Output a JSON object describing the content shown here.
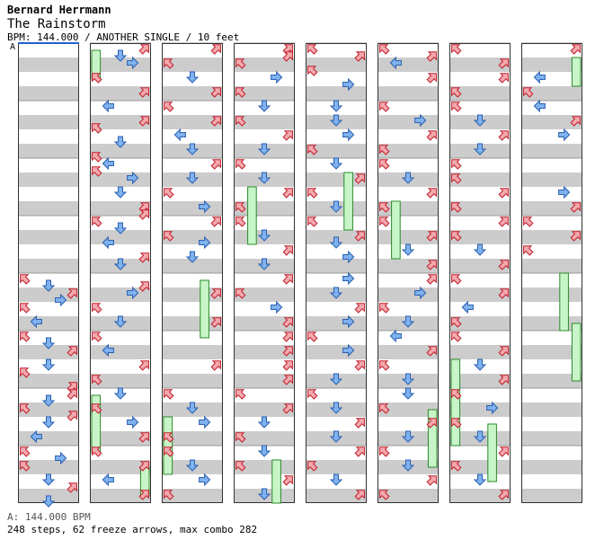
{
  "header": {
    "artist": "Bernard Herrmann",
    "title": "The Rainstorm",
    "info": "BPM: 144.000 / ANOTHER SINGLE / 10 feet"
  },
  "section_marker": "A",
  "footer": {
    "bpm_legend": "A: 144.000 BPM",
    "stats": "248 steps, 62 freeze arrows, max combo 282"
  },
  "colors": {
    "stripe": "#cccccc",
    "border": "#333333",
    "diagonal_arrow": "#f4a8ae",
    "diagonal_outline": "#c0202c",
    "cardinal_arrow": "#7fb2ef",
    "cardinal_outline": "#2a5fb0",
    "freeze_fill": "#c8f5c8",
    "freeze_outline": "#2a8a2a",
    "section_line": "#2060d0"
  },
  "chart_data": {
    "type": "step-chart",
    "columns": 8,
    "measures_per_column": 8,
    "lanes": [
      "up-left",
      "left",
      "center-down",
      "right",
      "up-right"
    ],
    "measures": [
      [],
      [],
      [],
      [],
      [
        [
          0,
          "up-left"
        ],
        [
          1,
          "center-down"
        ],
        [
          2,
          "up-right"
        ],
        [
          3,
          "right"
        ],
        [
          4,
          "up-left"
        ],
        [
          6,
          "left"
        ]
      ],
      [
        [
          0,
          "up-left"
        ],
        [
          1,
          "center-down"
        ],
        [
          2,
          "up-right"
        ],
        [
          4,
          "center-down"
        ],
        [
          5,
          "up-left"
        ],
        [
          7,
          "up-right"
        ]
      ],
      [
        [
          0,
          "up-right"
        ],
        [
          1,
          "center-down"
        ],
        [
          2,
          "up-left"
        ],
        [
          3,
          "up-right"
        ],
        [
          4,
          "center-down"
        ],
        [
          6,
          "left"
        ]
      ],
      [
        [
          0,
          "up-left"
        ],
        [
          1,
          "right"
        ],
        [
          2,
          "up-left"
        ],
        [
          4,
          "center-down"
        ],
        [
          5,
          "up-right"
        ],
        [
          7,
          "center-down"
        ]
      ],
      [
        [
          0,
          "up-right"
        ],
        [
          1,
          "center-down"
        ],
        [
          2,
          "right"
        ],
        [
          4,
          "up-left"
        ],
        [
          6,
          "up-right"
        ]
      ],
      [
        [
          0,
          "left"
        ],
        [
          2,
          "up-right"
        ],
        [
          3,
          "up-left"
        ],
        [
          5,
          "center-down"
        ],
        [
          7,
          "up-left"
        ]
      ],
      [
        [
          0,
          "left"
        ],
        [
          1,
          "up-left"
        ],
        [
          2,
          "right"
        ],
        [
          4,
          "center-down"
        ],
        [
          6,
          "up-right"
        ],
        [
          7,
          "up-right"
        ]
      ],
      [
        [
          0,
          "up-left"
        ],
        [
          1,
          "center-down"
        ],
        [
          3,
          "left"
        ],
        [
          5,
          "up-right"
        ],
        [
          6,
          "center-down"
        ]
      ],
      [
        [
          1,
          "up-right"
        ],
        [
          2,
          "right"
        ],
        [
          4,
          "up-left"
        ],
        [
          6,
          "center-down"
        ]
      ],
      [
        [
          0,
          "up-left"
        ],
        [
          2,
          "left"
        ],
        [
          4,
          "up-right"
        ],
        [
          6,
          "up-left"
        ]
      ],
      [
        [
          0,
          "center-down"
        ],
        [
          2,
          "up-left"
        ],
        [
          4,
          "right"
        ],
        [
          6,
          "up-right"
        ]
      ],
      [
        [
          0,
          "up-left"
        ],
        [
          2,
          "up-right"
        ],
        [
          4,
          "left"
        ],
        [
          6,
          "up-right"
        ]
      ],
      [
        [
          0,
          "up-right"
        ],
        [
          2,
          "up-left"
        ],
        [
          4,
          "center-down"
        ],
        [
          6,
          "up-right"
        ]
      ],
      [
        [
          0,
          "up-left"
        ],
        [
          2,
          "up-right"
        ],
        [
          4,
          "left"
        ],
        [
          6,
          "center-down"
        ]
      ],
      [
        [
          0,
          "up-right"
        ],
        [
          2,
          "center-down"
        ],
        [
          4,
          "up-left"
        ],
        [
          6,
          "right"
        ]
      ],
      [
        [
          0,
          "up-right"
        ],
        [
          2,
          "up-left"
        ],
        [
          3,
          "right"
        ],
        [
          5,
          "center-down"
        ]
      ],
      [
        [
          2,
          "up-right"
        ],
        [
          6,
          "up-right"
        ]
      ],
      [
        [
          4,
          "up-right"
        ]
      ],
      [
        [
          0,
          "up-left"
        ],
        [
          2,
          "center-down"
        ],
        [
          4,
          "right"
        ],
        [
          6,
          "up-left"
        ]
      ],
      [
        [
          0,
          "up-left"
        ],
        [
          2,
          "center-down"
        ],
        [
          4,
          "right"
        ],
        [
          6,
          "up-left"
        ]
      ],
      [
        [
          0,
          "up-right"
        ],
        [
          1,
          "up-right"
        ],
        [
          2,
          "up-left"
        ],
        [
          4,
          "right"
        ],
        [
          6,
          "up-left"
        ]
      ],
      [
        [
          0,
          "center-down"
        ],
        [
          2,
          "up-left"
        ],
        [
          4,
          "up-right"
        ],
        [
          6,
          "center-down"
        ]
      ],
      [
        [
          0,
          "up-left"
        ],
        [
          2,
          "center-down"
        ],
        [
          4,
          "up-right"
        ],
        [
          6,
          "up-left"
        ]
      ],
      [
        [
          0,
          "up-left"
        ],
        [
          2,
          "center-down"
        ],
        [
          4,
          "up-right"
        ],
        [
          6,
          "center-down"
        ]
      ],
      [
        [
          0,
          "up-right"
        ],
        [
          2,
          "up-left"
        ],
        [
          4,
          "right"
        ],
        [
          6,
          "up-right"
        ]
      ],
      [
        [
          0,
          "up-right"
        ],
        [
          2,
          "up-right"
        ],
        [
          4,
          "up-right"
        ],
        [
          6,
          "up-right"
        ]
      ],
      [
        [
          0,
          "up-left"
        ],
        [
          2,
          "up-right"
        ],
        [
          4,
          "center-down"
        ],
        [
          6,
          "up-left"
        ]
      ],
      [
        [
          0,
          "center-down"
        ],
        [
          2,
          "up-left"
        ],
        [
          4,
          "up-right"
        ],
        [
          6,
          "center-down"
        ]
      ],
      [
        [
          0,
          "up-left"
        ],
        [
          1,
          "up-right"
        ],
        [
          3,
          "up-left"
        ],
        [
          5,
          "right"
        ]
      ],
      [
        [
          0,
          "center-down"
        ],
        [
          2,
          "center-down"
        ],
        [
          4,
          "right"
        ],
        [
          6,
          "up-left"
        ]
      ],
      [
        [
          0,
          "center-down"
        ],
        [
          2,
          "up-right"
        ],
        [
          4,
          "up-left"
        ],
        [
          6,
          "center-down"
        ]
      ],
      [
        [
          0,
          "up-left"
        ],
        [
          2,
          "up-right"
        ],
        [
          3,
          "center-down"
        ],
        [
          5,
          "right"
        ]
      ],
      [
        [
          0,
          "right"
        ],
        [
          2,
          "center-down"
        ],
        [
          4,
          "up-right"
        ],
        [
          6,
          "right"
        ]
      ],
      [
        [
          0,
          "up-left"
        ],
        [
          2,
          "right"
        ],
        [
          4,
          "up-right"
        ],
        [
          6,
          "center-down"
        ]
      ],
      [
        [
          0,
          "up-left"
        ],
        [
          2,
          "center-down"
        ],
        [
          4,
          "up-right"
        ],
        [
          6,
          "center-down"
        ]
      ],
      [
        [
          0,
          "up-right"
        ],
        [
          2,
          "up-left"
        ],
        [
          4,
          "center-down"
        ],
        [
          6,
          "up-right"
        ]
      ],
      [
        [
          0,
          "up-left"
        ],
        [
          1,
          "up-right"
        ],
        [
          2,
          "left"
        ],
        [
          4,
          "up-right"
        ]
      ],
      [
        [
          0,
          "up-left"
        ],
        [
          2,
          "right"
        ],
        [
          4,
          "up-right"
        ],
        [
          6,
          "up-left"
        ]
      ],
      [
        [
          0,
          "up-left"
        ],
        [
          2,
          "center-down"
        ],
        [
          4,
          "up-right"
        ],
        [
          6,
          "up-left"
        ]
      ],
      [
        [
          0,
          "up-left"
        ],
        [
          2,
          "up-right"
        ],
        [
          4,
          "center-down"
        ],
        [
          6,
          "up-right"
        ]
      ],
      [
        [
          0,
          "up-right"
        ],
        [
          2,
          "right"
        ],
        [
          4,
          "up-left"
        ],
        [
          6,
          "center-down"
        ]
      ],
      [
        [
          0,
          "left"
        ],
        [
          2,
          "up-right"
        ],
        [
          4,
          "up-left"
        ],
        [
          6,
          "center-down"
        ]
      ],
      [
        [
          0,
          "center-down"
        ],
        [
          2,
          "up-left"
        ],
        [
          4,
          "up-right"
        ],
        [
          6,
          "center-down"
        ]
      ],
      [
        [
          0,
          "up-left"
        ],
        [
          2,
          "center-down"
        ],
        [
          4,
          "up-right"
        ],
        [
          6,
          "up-left"
        ]
      ],
      [
        [
          0,
          "up-left"
        ],
        [
          2,
          "up-right"
        ],
        [
          4,
          "up-right"
        ],
        [
          6,
          "up-left"
        ]
      ],
      [
        [
          0,
          "up-left"
        ],
        [
          2,
          "center-down"
        ],
        [
          4,
          "up-right"
        ],
        [
          6,
          "center-down"
        ]
      ],
      [
        [
          0,
          "up-left"
        ],
        [
          2,
          "up-left"
        ],
        [
          4,
          "up-right"
        ],
        [
          6,
          "up-left"
        ]
      ],
      [
        [
          0,
          "up-right"
        ],
        [
          2,
          "up-left"
        ],
        [
          4,
          "center-down"
        ],
        [
          6,
          "up-right"
        ]
      ],
      [
        [
          0,
          "up-left"
        ],
        [
          2,
          "up-right"
        ],
        [
          4,
          "left"
        ],
        [
          6,
          "up-left"
        ]
      ],
      [
        [
          0,
          "up-left"
        ],
        [
          2,
          "up-right"
        ],
        [
          4,
          "center-down"
        ],
        [
          6,
          "up-right"
        ]
      ],
      [
        [
          0,
          "up-left"
        ],
        [
          2,
          "right"
        ],
        [
          4,
          "up-left"
        ],
        [
          6,
          "center-down"
        ]
      ],
      [
        [
          0,
          "up-right"
        ],
        [
          2,
          "up-left"
        ],
        [
          4,
          "center-down"
        ],
        [
          6,
          "up-right"
        ]
      ],
      [
        [
          0,
          "up-right"
        ],
        [
          4,
          "left"
        ],
        [
          6,
          "up-left"
        ]
      ],
      [
        [
          0,
          "left"
        ],
        [
          2,
          "up-right"
        ],
        [
          4,
          "right"
        ]
      ],
      [
        [
          4,
          "right"
        ],
        [
          6,
          "up-right"
        ]
      ],
      [
        [
          0,
          "up-left"
        ],
        [
          2,
          "up-right"
        ],
        [
          4,
          "up-left"
        ]
      ],
      [],
      [],
      [],
      []
    ],
    "freezes": [
      [
        1,
        0,
        0,
        1,
        1
      ],
      [
        1,
        6,
        0,
        2,
        1
      ],
      [
        2,
        4,
        3,
        2,
        1
      ],
      [
        2,
        6,
        0,
        2,
        4
      ],
      [
        3,
        2,
        1,
        2,
        4
      ],
      [
        4,
        2,
        3,
        2,
        2
      ],
      [
        5,
        2,
        1,
        2,
        6
      ],
      [
        6,
        6,
        3,
        2,
        5
      ],
      [
        7,
        0,
        4,
        1,
        2
      ],
      [
        7,
        3,
        3,
        2,
        8
      ],
      [
        7,
        4,
        4,
        2,
        7
      ],
      [
        6,
        5,
        0,
        3,
        4
      ],
      [
        1,
        7,
        4,
        1,
        3
      ],
      [
        3,
        7,
        3,
        2,
        2
      ],
      [
        5,
        6,
        4,
        2,
        3
      ]
    ]
  }
}
